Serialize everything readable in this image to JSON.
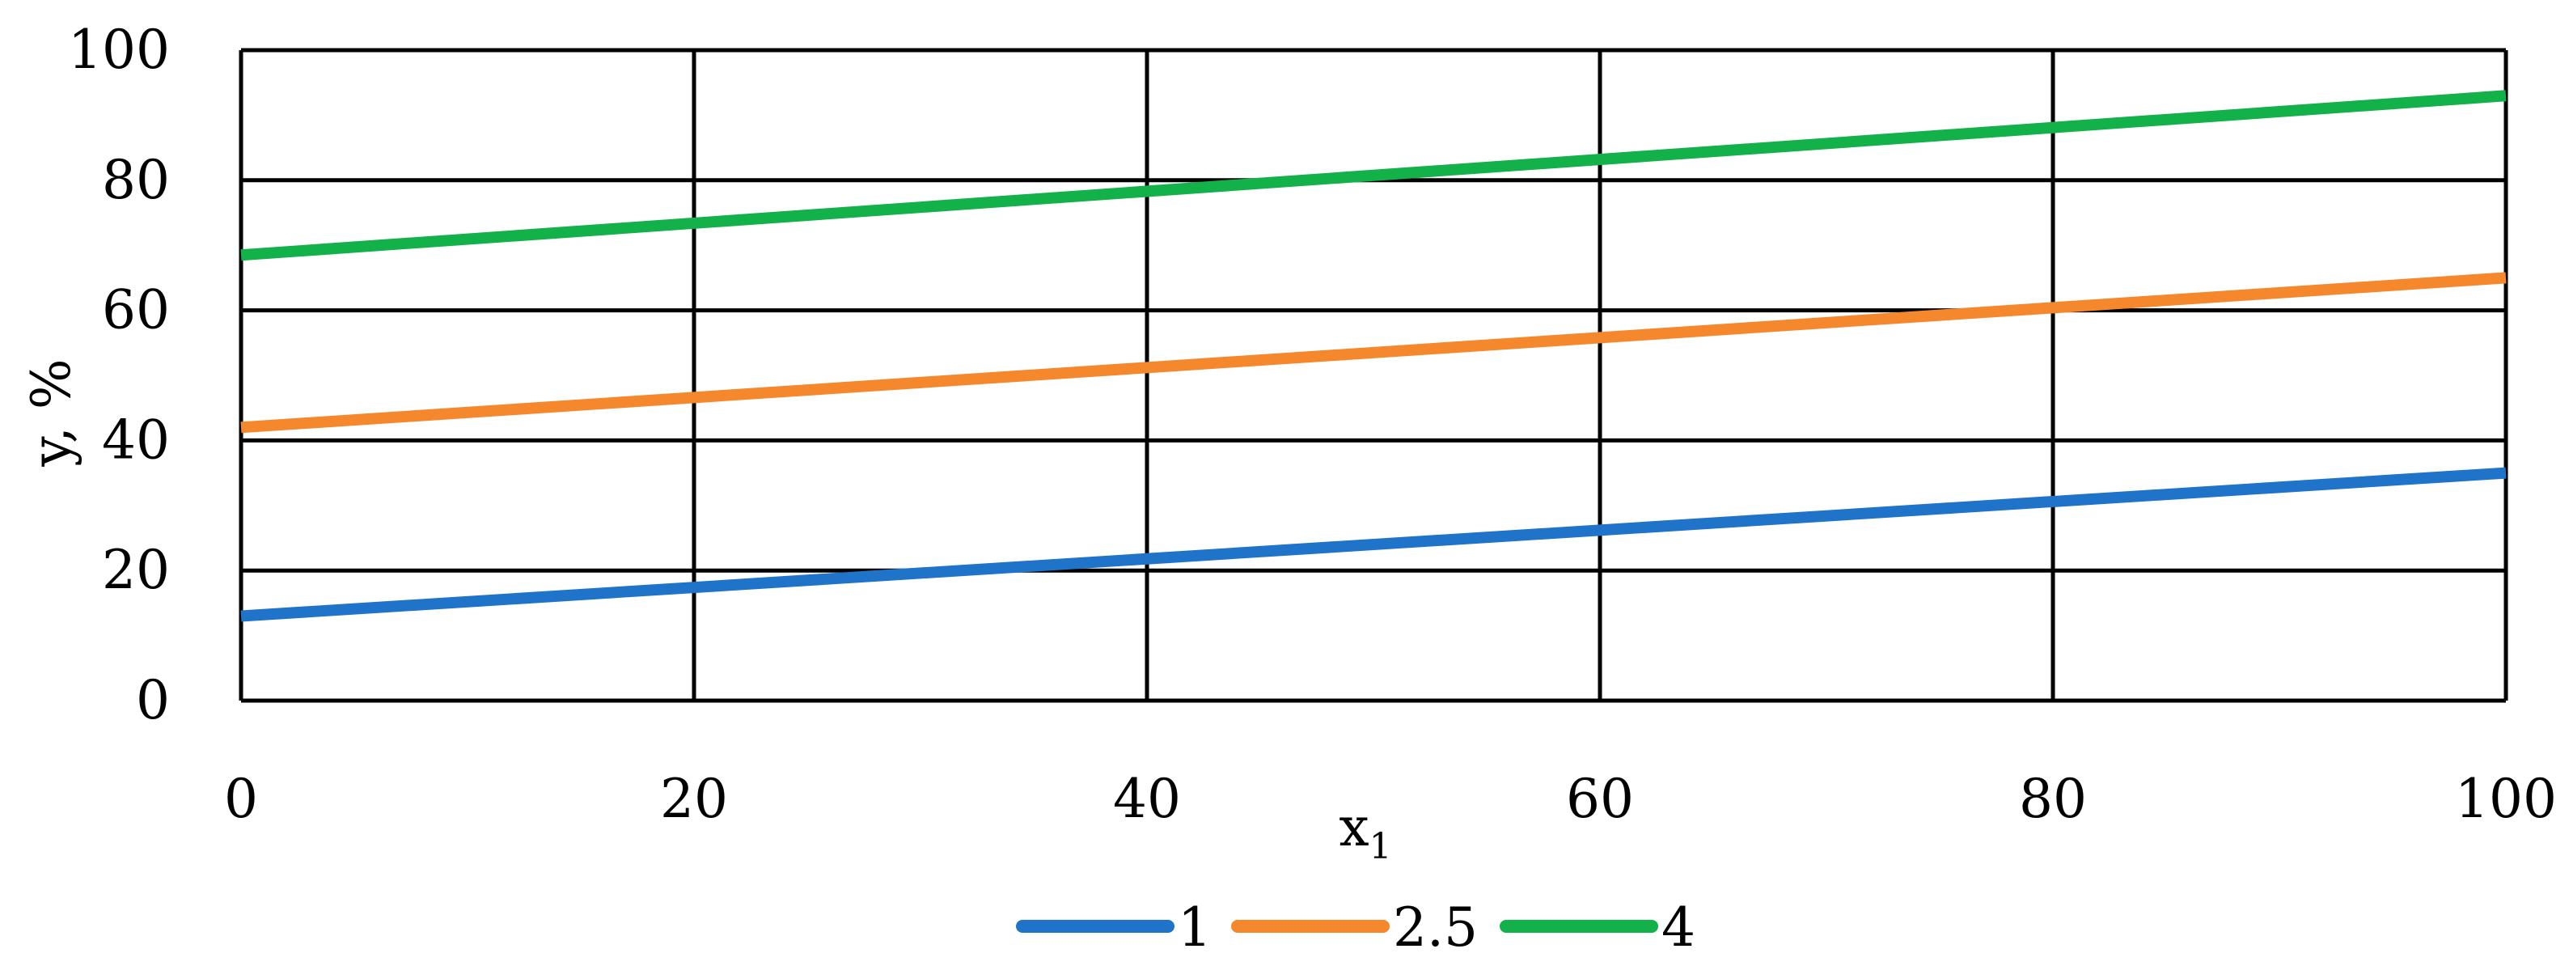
{
  "chart_data": {
    "type": "line",
    "title": "",
    "xlabel": "x",
    "xlabel_subscript": "1",
    "ylabel": "y, %",
    "xlim": [
      0,
      100
    ],
    "ylim": [
      0,
      100
    ],
    "x_ticks": [
      "0",
      "20",
      "40",
      "60",
      "80",
      "100"
    ],
    "y_ticks": [
      "0",
      "20",
      "40",
      "60",
      "80",
      "100"
    ],
    "grid": true,
    "legend_position": "bottom",
    "x": [
      0,
      100
    ],
    "series": [
      {
        "name": "1",
        "color": "#1f74c9",
        "values": [
          13,
          35
        ]
      },
      {
        "name": "2.5",
        "color": "#f5872c",
        "values": [
          42,
          65
        ]
      },
      {
        "name": "4",
        "color": "#13b14a",
        "values": [
          68.5,
          93
        ]
      }
    ]
  }
}
